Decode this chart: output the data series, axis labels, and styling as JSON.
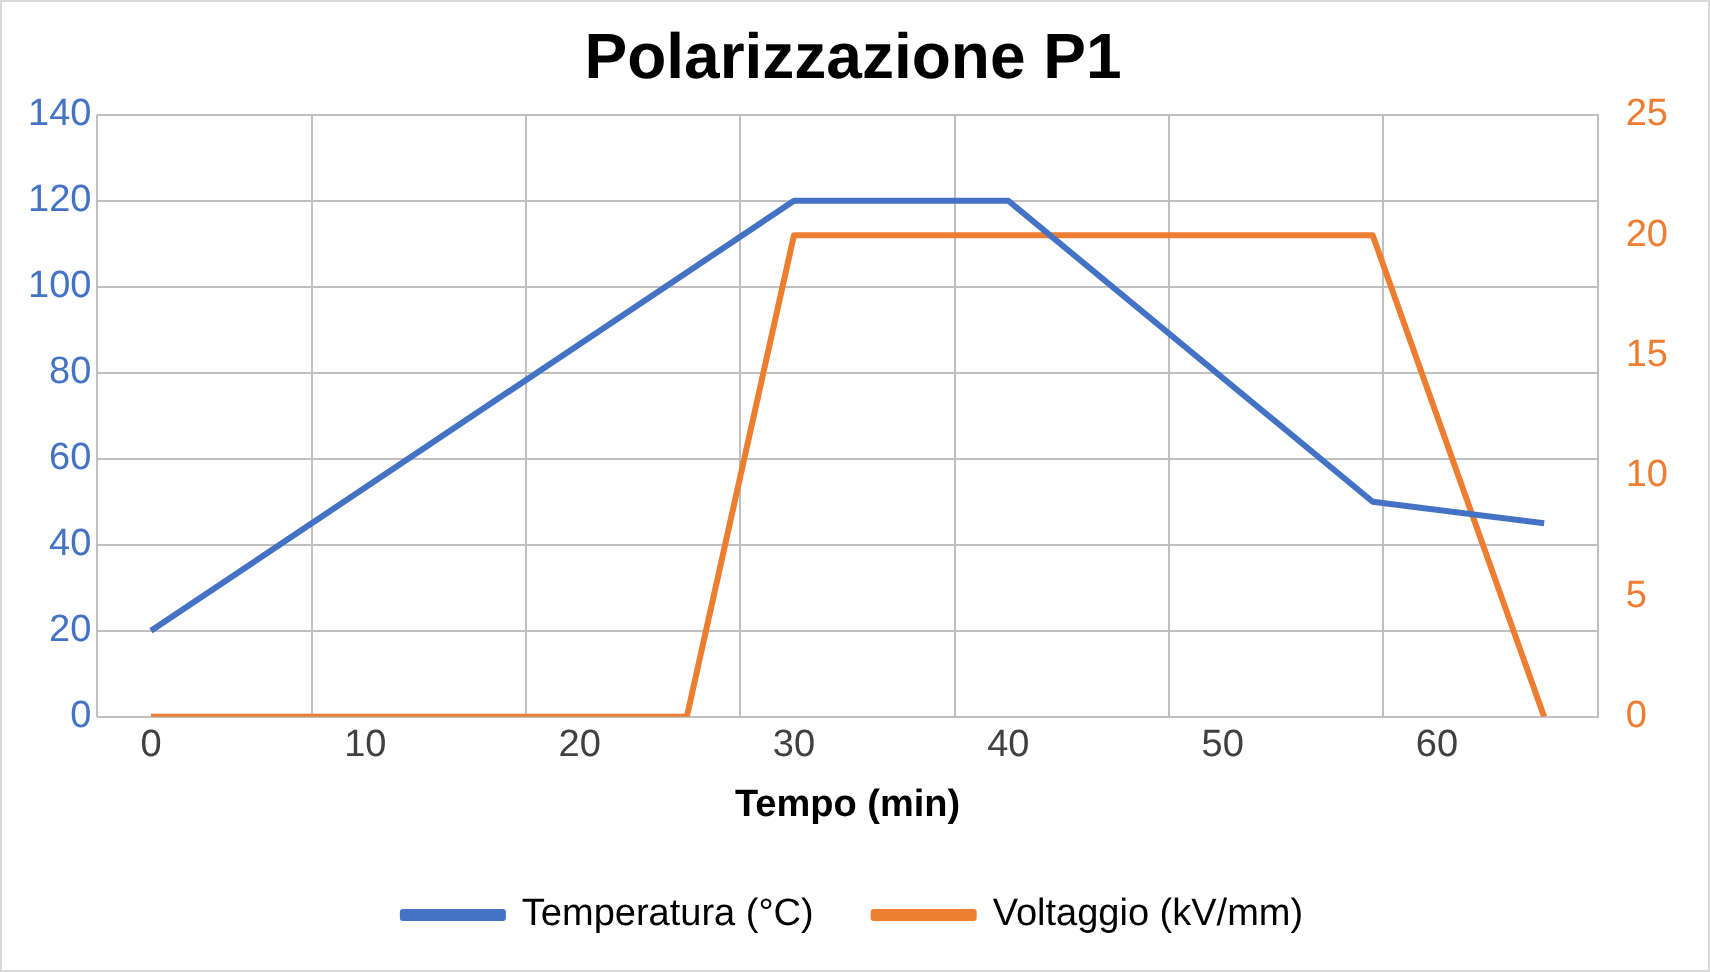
{
  "chart_data": {
    "type": "line",
    "title": "Polarizzazione P1",
    "xlabel": "Tempo (min)",
    "xlim": [
      -2.5,
      67.5
    ],
    "xticks": [
      {
        "value": -2.5,
        "label": null
      },
      0,
      {
        "value": 7.5,
        "label": null
      },
      10,
      {
        "value": 17.5,
        "label": null
      },
      20,
      {
        "value": 27.5,
        "label": null
      },
      30,
      {
        "value": 37.5,
        "label": null
      },
      40,
      {
        "value": 47.5,
        "label": null
      },
      50,
      {
        "value": 57.5,
        "label": null
      },
      60,
      {
        "value": 67.5,
        "label": null
      }
    ],
    "ylim": [
      0,
      140
    ],
    "yticks": [
      0,
      20,
      40,
      60,
      80,
      100,
      120,
      140
    ],
    "y2lim": [
      0,
      25
    ],
    "y2ticks": [
      0,
      5,
      10,
      15,
      20,
      25
    ],
    "grid": true,
    "legend": "bottom",
    "marker": "none",
    "line_style": "solid",
    "series": [
      {
        "name": "Temperatura (°C)",
        "color": "#4472c4",
        "x": [
          0,
          30,
          40,
          57,
          65
        ],
        "values": [
          20,
          120,
          120,
          50,
          45
        ]
      },
      {
        "name": "Voltaggio (kV/mm)",
        "color": "#ed7d31",
        "axis": "y2",
        "x": [
          0,
          25,
          30,
          57,
          65
        ],
        "values": [
          0,
          0,
          20,
          20,
          0
        ]
      }
    ]
  }
}
